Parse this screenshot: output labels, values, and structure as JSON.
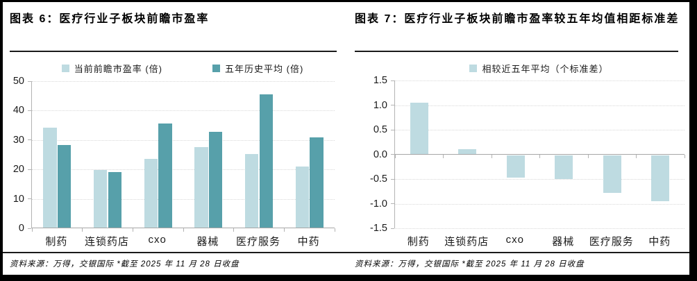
{
  "panels": [
    {
      "title": "图表 6：医疗行业子板块前瞻市盈率",
      "source_note": "资料来源：万得，交银国际  *截至 2025 年 11 月 28 日收盘"
    },
    {
      "title": "图表 7：医疗行业子板块前瞻市盈率较五年均值相距标准差",
      "source_note": "资料来源：万得，交银国际  *截至 2025 年 11 月 28 日收盘"
    }
  ],
  "colors": {
    "series_light": "#bedbe1",
    "series_dark": "#57a0aa",
    "gridline": "#d8d8d8",
    "axis": "#b3b3b3",
    "zero_line": "#a6a6a6",
    "rule": "#1a1a1a",
    "text": "#1a1a1a"
  },
  "chart_data": [
    {
      "type": "bar",
      "title": "图表 6：医疗行业子板块前瞻市盈率",
      "categories": [
        "制药",
        "连锁药店",
        "cxo",
        "器械",
        "医疗服务",
        "中药"
      ],
      "series": [
        {
          "name": "当前前瞻市盈率 (倍)",
          "color": "#bedbe1",
          "values": [
            34.3,
            19.8,
            23.5,
            27.6,
            25.3,
            21.0
          ]
        },
        {
          "name": "五年历史平均 (倍)",
          "color": "#57a0aa",
          "values": [
            28.4,
            19.1,
            35.7,
            32.7,
            45.5,
            30.8
          ]
        }
      ],
      "xlabel": "",
      "ylabel": "",
      "ylim": [
        0,
        50
      ],
      "ytick_labels": [
        "50",
        "40",
        "30",
        "20",
        "10",
        "0"
      ],
      "grid": "horizontal-dotted",
      "legend_position": "top"
    },
    {
      "type": "bar",
      "title": "图表 7：医疗行业子板块前瞻市盈率较五年均值相距标准差",
      "categories": [
        "制药",
        "连锁药店",
        "cxo",
        "器械",
        "医疗服务",
        "中药"
      ],
      "series": [
        {
          "name": "相较近五年平均（个标准差）",
          "color": "#bedbe1",
          "values": [
            1.05,
            0.1,
            -0.46,
            -0.48,
            -0.77,
            -0.93
          ]
        }
      ],
      "xlabel": "",
      "ylabel": "",
      "ylim": [
        -1.5,
        1.5
      ],
      "ytick_labels": [
        "1.5",
        "1.0",
        "0.5",
        "0.0",
        "-0.5",
        "-1.0",
        "-1.5"
      ],
      "grid": "horizontal-dotted",
      "legend_position": "top"
    }
  ]
}
